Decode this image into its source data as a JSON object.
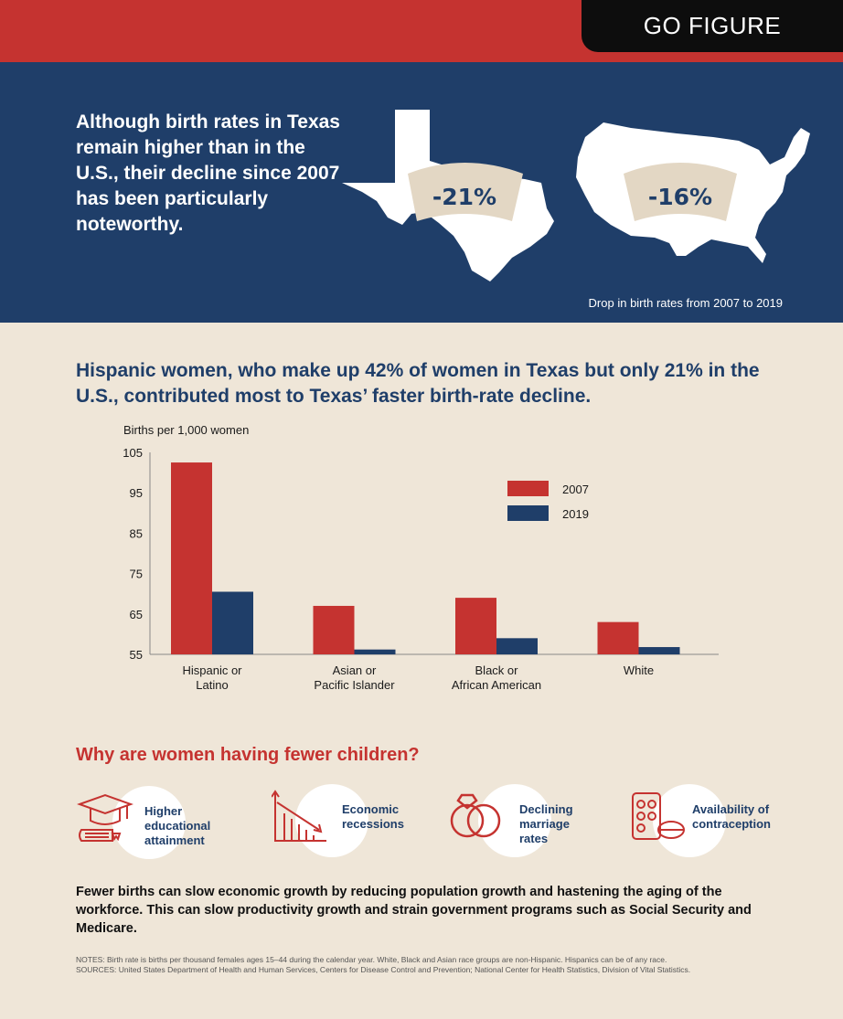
{
  "banner": {
    "label": "GO FIGURE"
  },
  "intro": {
    "text": "Although birth rates in Texas remain higher than in the U.S., their decline since 2007 has been particularly noteworthy."
  },
  "maps": {
    "texas_pct": "-21%",
    "us_pct": "-16%",
    "note": "Drop in birth rates from 2007 to 2019"
  },
  "chart_heading": "Hispanic women, who make up 42% of women in Texas but only 21% in the U.S., contributed most to Texas’ faster birth-rate decline.",
  "chart_data": {
    "type": "bar",
    "ylabel": "Births per 1,000 women",
    "ylim": [
      55,
      105
    ],
    "yticks": [
      55,
      65,
      75,
      85,
      95,
      105
    ],
    "categories": [
      [
        "Hispanic or",
        "Latino"
      ],
      [
        "Asian or",
        "Pacific Islander"
      ],
      [
        "Black or",
        "African American"
      ],
      [
        "White"
      ]
    ],
    "series": [
      {
        "name": "2007",
        "color": "#c53330",
        "values": [
          102.5,
          67,
          69,
          63
        ]
      },
      {
        "name": "2019",
        "color": "#1f3e69",
        "values": [
          70.5,
          56.2,
          59,
          56.8
        ]
      }
    ],
    "legend_position": "top-right",
    "grid": false
  },
  "why_heading": "Why are women having fewer children?",
  "reasons": [
    {
      "icon": "graduation-cap-icon",
      "label_lines": [
        "Higher",
        "educational",
        "attainment"
      ]
    },
    {
      "icon": "declining-chart-icon",
      "label_lines": [
        "Economic",
        "recessions"
      ]
    },
    {
      "icon": "rings-icon",
      "label_lines": [
        "Declining",
        "marriage",
        "rates"
      ]
    },
    {
      "icon": "pills-icon",
      "label_lines": [
        "Availability of",
        "contraception"
      ]
    }
  ],
  "conclusion": "Fewer births can slow economic growth by reducing population growth and hastening the aging of the workforce. This can slow productivity growth and strain government programs such as Social Security and Medicare.",
  "notes": {
    "line1": "NOTES: Birth rate is births per thousand females ages 15–44 during the calendar year. White, Black and Asian race groups are non-Hispanic. Hispanics can be of any race.",
    "line2": "SOURCES: United States Department of Health and Human Services, Centers for Disease Control and Prevention; National Center for Health Statistics, Division of Vital Statistics."
  },
  "colors": {
    "red": "#c53330",
    "navy": "#1f3e69",
    "beige": "#efe6d8",
    "tan": "#e3d7c4"
  }
}
